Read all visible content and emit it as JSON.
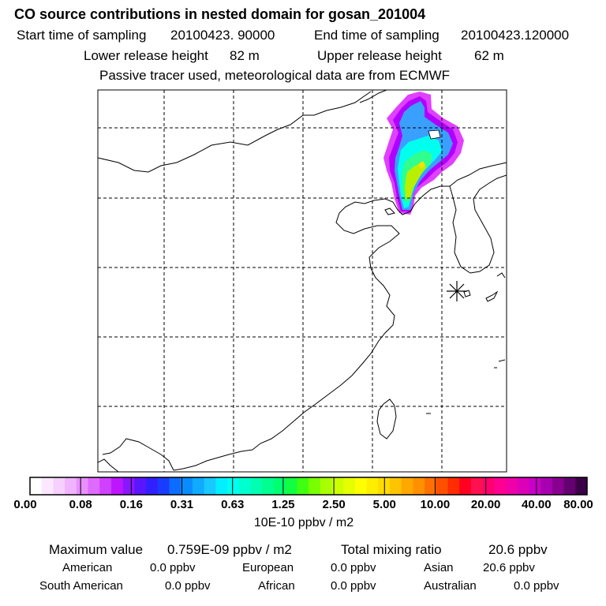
{
  "header": {
    "title": "CO  source contributions in nested domain for gosan_201004",
    "start_label": "Start time of sampling",
    "start_value": "20100423. 90000",
    "end_label": "End time of sampling",
    "end_value": "20100423.120000",
    "lower_label": "Lower release height",
    "lower_value": "82 m",
    "upper_label": "Upper release height",
    "upper_value": "62 m",
    "note": "Passive tracer used, meteorological data are from ECMWF"
  },
  "map": {
    "graticule": "dashed",
    "receptor_marker": "asterisk",
    "plume_colors": [
      "#e040ff",
      "#b000ff",
      "#3aa0ff",
      "#00ffee",
      "#30ff90",
      "#b8f000",
      "#ffe000"
    ]
  },
  "colorbar": {
    "ticks": [
      "0.00",
      "0.08",
      "0.16",
      "0.31",
      "0.63",
      "1.25",
      "2.50",
      "5.00",
      "10.00",
      "20.00",
      "40.00",
      "80.00"
    ],
    "units": "10E-10 ppbv / m2",
    "colors": [
      "#ffffff",
      "#fbe8ff",
      "#f6d0ff",
      "#f0b4ff",
      "#e890ff",
      "#df6aff",
      "#d040ff",
      "#bd16ff",
      "#8a16ff",
      "#5a16ff",
      "#3020ff",
      "#1a3cff",
      "#0c6cff",
      "#0a8cff",
      "#10aaff",
      "#18c8ff",
      "#00f0ff",
      "#00fff0",
      "#00ffd0",
      "#00ffb0",
      "#00ff90",
      "#00ff70",
      "#10ff40",
      "#40ff10",
      "#78ff00",
      "#a8ff00",
      "#ccff00",
      "#e6ff00",
      "#ffff00",
      "#ffee00",
      "#ffdc00",
      "#ffc400",
      "#ffa800",
      "#ff9000",
      "#ff7000",
      "#ff5000",
      "#ff2c00",
      "#ff0020",
      "#ff1050",
      "#ff0070",
      "#ff0090",
      "#f000a8",
      "#dc00b8",
      "#c800c8",
      "#a800b0",
      "#880090",
      "#640070",
      "#3c0048"
    ]
  },
  "summary": {
    "max_label": "Maximum value",
    "max_value": "0.759E-09 ppbv / m2",
    "total_label": "Total mixing ratio",
    "total_value": "20.6 ppbv",
    "sources": [
      {
        "name": "American",
        "value": "0.0 ppbv"
      },
      {
        "name": "European",
        "value": "0.0 ppbv"
      },
      {
        "name": "Asian",
        "value": "20.6 ppbv"
      },
      {
        "name": "South American",
        "value": "0.0 ppbv"
      },
      {
        "name": "African",
        "value": "0.0 ppbv"
      },
      {
        "name": "Australian",
        "value": "0.0 ppbv"
      }
    ]
  }
}
